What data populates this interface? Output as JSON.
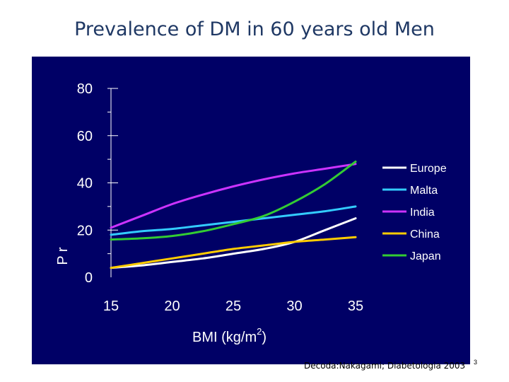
{
  "slide": {
    "title": "Prevalence of DM in 60 years old Men",
    "citation": "Decoda:Nakagami; Diabetologia 2003",
    "slide_number": "3"
  },
  "colors": {
    "background": "#000066",
    "axis": "#ffffff",
    "Europe": "#ffffff",
    "Malta": "#33ccff",
    "India": "#cc33ff",
    "China": "#ffcc00",
    "Japan": "#33cc33"
  },
  "chart_data": {
    "type": "line",
    "title": "Prevalence of DM in 60 years old Men",
    "xlabel": "BMI (kg/m",
    "xlabel_sup": "2",
    "xlabel_end": ")",
    "ylabel_fragment": "P r",
    "xlim": [
      15,
      35
    ],
    "ylim": [
      0,
      80
    ],
    "x_ticks": [
      "15",
      "20",
      "25",
      "30",
      "35"
    ],
    "y_ticks": [
      "0",
      "20",
      "40",
      "60",
      "80"
    ],
    "x": [
      15,
      17.5,
      20,
      22.5,
      25,
      27.5,
      30,
      32.5,
      35
    ],
    "series": [
      {
        "name": "Europe",
        "values": [
          4,
          5,
          6.5,
          8,
          10,
          12,
          15,
          20,
          25
        ]
      },
      {
        "name": "Malta",
        "values": [
          18,
          19.5,
          20.5,
          22,
          23.5,
          25,
          26.5,
          28,
          30
        ]
      },
      {
        "name": "India",
        "values": [
          21,
          26,
          31,
          35,
          38.5,
          41.5,
          44,
          46,
          48
        ]
      },
      {
        "name": "China",
        "values": [
          4,
          6,
          8,
          10,
          12,
          13.5,
          15,
          16,
          17
        ]
      },
      {
        "name": "Japan",
        "values": [
          16,
          16.5,
          17.5,
          19.5,
          22.5,
          26,
          32,
          39.5,
          49
        ]
      }
    ],
    "legend": [
      "Europe",
      "Malta",
      "India",
      "China",
      "Japan"
    ],
    "legend_position": "right"
  }
}
